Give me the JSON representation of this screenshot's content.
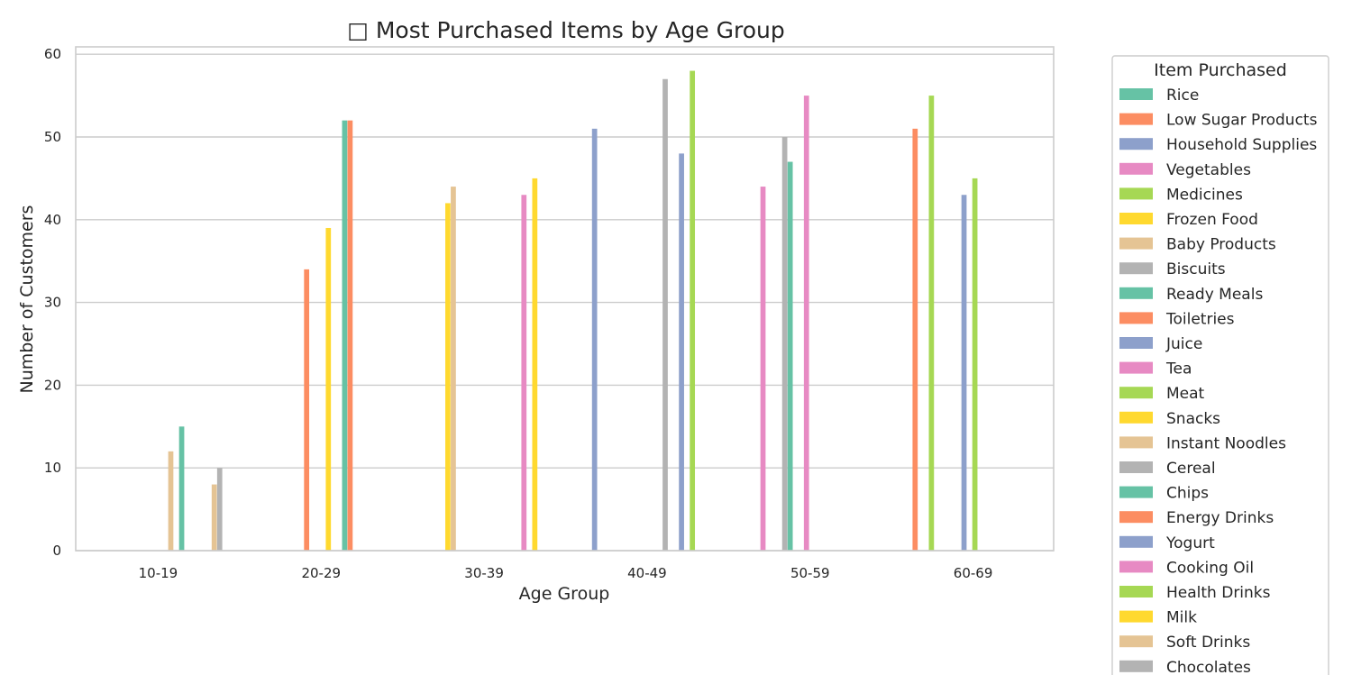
{
  "chart_data": {
    "type": "bar",
    "title": "□ Most Purchased Items by Age Group",
    "xlabel": "Age Group",
    "ylabel": "Number of Customers",
    "ylim": [
      0,
      61
    ],
    "yticks": [
      0,
      10,
      20,
      30,
      40,
      50,
      60
    ],
    "grid": true,
    "categories": [
      "10-19",
      "20-29",
      "30-39",
      "40-49",
      "50-59",
      "60-69"
    ],
    "legend": {
      "title": "Item Purchased",
      "placement": "outside-right",
      "items": [
        {
          "name": "Rice",
          "color": "#66c2a5"
        },
        {
          "name": "Low Sugar Products",
          "color": "#fc8d62"
        },
        {
          "name": "Household Supplies",
          "color": "#8da0cb"
        },
        {
          "name": "Vegetables",
          "color": "#e78ac3"
        },
        {
          "name": "Medicines",
          "color": "#a6d854"
        },
        {
          "name": "Frozen Food",
          "color": "#ffd92f"
        },
        {
          "name": "Baby Products",
          "color": "#e5c494"
        },
        {
          "name": "Biscuits",
          "color": "#b3b3b3"
        },
        {
          "name": "Ready Meals",
          "color": "#66c2a5"
        },
        {
          "name": "Toiletries",
          "color": "#fc8d62"
        },
        {
          "name": "Juice",
          "color": "#8da0cb"
        },
        {
          "name": "Tea",
          "color": "#e78ac3"
        },
        {
          "name": "Meat",
          "color": "#a6d854"
        },
        {
          "name": "Snacks",
          "color": "#ffd92f"
        },
        {
          "name": "Instant Noodles",
          "color": "#e5c494"
        },
        {
          "name": "Cereal",
          "color": "#b3b3b3"
        },
        {
          "name": "Chips",
          "color": "#66c2a5"
        },
        {
          "name": "Energy Drinks",
          "color": "#fc8d62"
        },
        {
          "name": "Yogurt",
          "color": "#8da0cb"
        },
        {
          "name": "Cooking Oil",
          "color": "#e78ac3"
        },
        {
          "name": "Health Drinks",
          "color": "#a6d854"
        },
        {
          "name": "Milk",
          "color": "#ffd92f"
        },
        {
          "name": "Soft Drinks",
          "color": "#e5c494"
        },
        {
          "name": "Chocolates",
          "color": "#b3b3b3"
        }
      ]
    },
    "bars": [
      {
        "category": "10-19",
        "item": "Instant Noodles",
        "value": 12
      },
      {
        "category": "10-19",
        "item": "Chips",
        "value": 15
      },
      {
        "category": "10-19",
        "item": "Soft Drinks",
        "value": 8
      },
      {
        "category": "10-19",
        "item": "Chocolates",
        "value": 10
      },
      {
        "category": "20-29",
        "item": "Snacks",
        "value": 39
      },
      {
        "category": "20-29",
        "item": "Chips",
        "value": 52
      },
      {
        "category": "20-29",
        "item": "Energy Drinks",
        "value": 52
      },
      {
        "category": "20-29",
        "item": "Toiletries",
        "value": 34
      },
      {
        "category": "30-39",
        "item": "Cooking Oil",
        "value": 43
      },
      {
        "category": "30-39",
        "item": "Baby Products",
        "value": 44
      },
      {
        "category": "30-39",
        "item": "Milk",
        "value": 45
      },
      {
        "category": "30-39",
        "item": "Frozen Food",
        "value": 42
      },
      {
        "category": "40-49",
        "item": "Household Supplies",
        "value": 51
      },
      {
        "category": "40-49",
        "item": "Yogurt",
        "value": 48
      },
      {
        "category": "40-49",
        "item": "Health Drinks",
        "value": 58
      },
      {
        "category": "40-49",
        "item": "Cereal",
        "value": 57
      },
      {
        "category": "50-59",
        "item": "Ready Meals",
        "value": 47
      },
      {
        "category": "50-59",
        "item": "Biscuits",
        "value": 50
      },
      {
        "category": "50-59",
        "item": "Vegetables",
        "value": 44
      },
      {
        "category": "50-59",
        "item": "Tea",
        "value": 55
      },
      {
        "category": "60-69",
        "item": "Low Sugar Products",
        "value": 51
      },
      {
        "category": "60-69",
        "item": "Medicines",
        "value": 55
      },
      {
        "category": "60-69",
        "item": "Juice",
        "value": 43
      },
      {
        "category": "60-69",
        "item": "Meat",
        "value": 45
      }
    ]
  }
}
